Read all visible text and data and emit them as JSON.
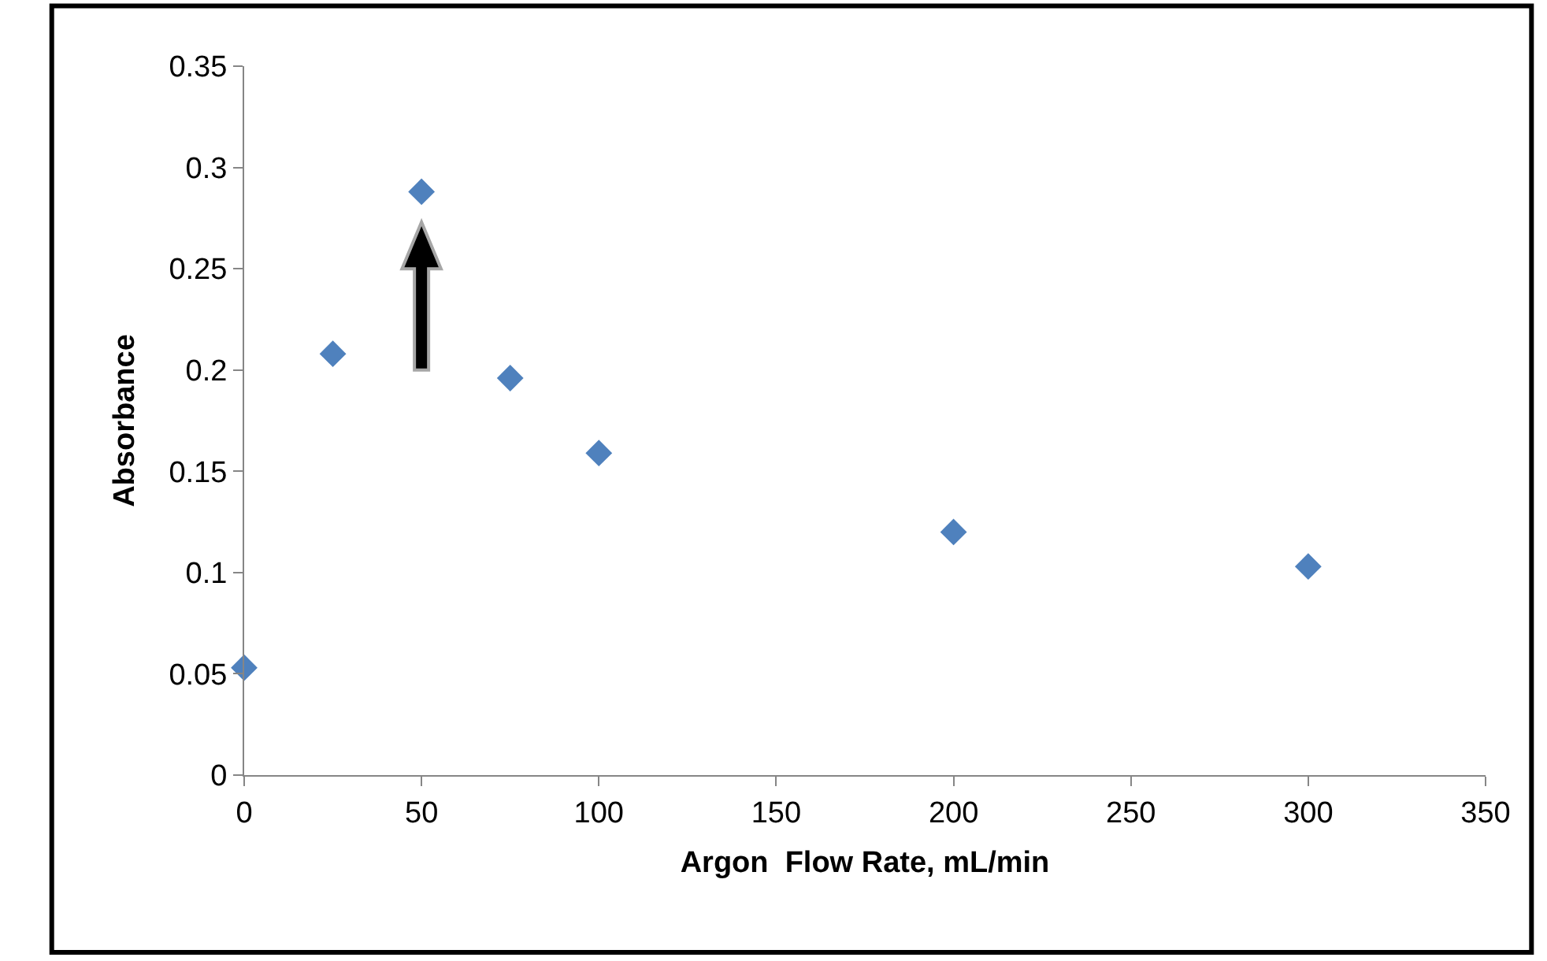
{
  "chart_data": {
    "type": "scatter",
    "xlabel": "Argon  Flow Rate, mL/min",
    "ylabel": "Absorbance",
    "x": [
      0,
      25,
      50,
      75,
      100,
      200,
      300
    ],
    "series": [
      {
        "color": "#4f81bd",
        "values": [
          0.053,
          0.208,
          0.288,
          0.196,
          0.159,
          0.12,
          0.103
        ]
      }
    ],
    "xlim": [
      0,
      350
    ],
    "xticks": [
      0,
      50,
      100,
      150,
      200,
      250,
      300,
      350
    ],
    "ylim": [
      0,
      0.35
    ],
    "yticks": [
      0,
      {
        "value": 0.05,
        "label": "0.05"
      },
      {
        "value": 0.1,
        "label": "0.1"
      },
      {
        "value": 0.15,
        "label": "0.15"
      },
      {
        "value": 0.2,
        "label": "0.2"
      },
      {
        "value": 0.25,
        "label": "0.25"
      },
      {
        "value": 0.3,
        "label": "0.3"
      },
      {
        "value": 0.35,
        "label": "0.35"
      }
    ],
    "marker": "diamond"
  }
}
